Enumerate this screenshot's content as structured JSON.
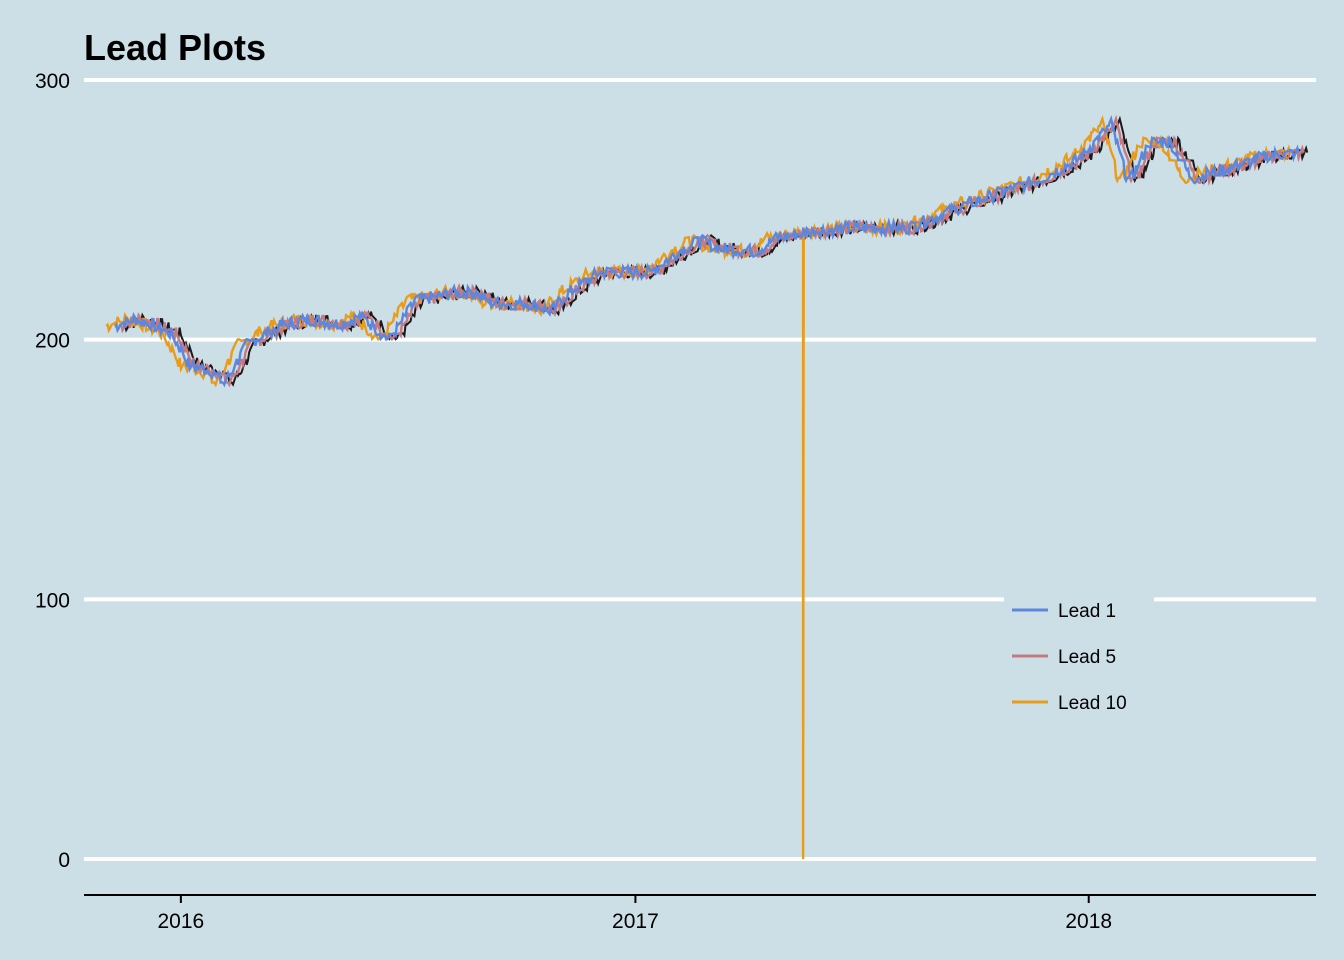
{
  "chart_data": {
    "type": "line",
    "title": "Lead Plots",
    "xlabel": "",
    "ylabel": "",
    "ylim": [
      0,
      300
    ],
    "y_ticks": [
      0,
      100,
      200,
      300
    ],
    "y_tick_labels": [
      "0",
      "100",
      "200",
      "300"
    ],
    "x_range": [
      "2015-10-15",
      "2018-07-03"
    ],
    "x_ticks": [
      "2016-01-01",
      "2017-01-01",
      "2018-01-01"
    ],
    "x_tick_labels": [
      "2016",
      "2017",
      "2018"
    ],
    "grid": "horizontal",
    "background_color": "#cddfe6",
    "legend": {
      "placement": "bottom-right"
    },
    "base_series": {
      "color": "#1a1a1a",
      "points": [
        [
          "2015-11-15",
          205
        ],
        [
          "2015-12-01",
          208
        ],
        [
          "2015-12-15",
          206
        ],
        [
          "2016-01-01",
          202
        ],
        [
          "2016-01-15",
          190
        ],
        [
          "2016-02-01",
          188
        ],
        [
          "2016-02-12",
          183
        ],
        [
          "2016-03-01",
          198
        ],
        [
          "2016-03-15",
          202
        ],
        [
          "2016-04-01",
          206
        ],
        [
          "2016-04-20",
          208
        ],
        [
          "2016-05-15",
          206
        ],
        [
          "2016-06-01",
          209
        ],
        [
          "2016-06-24",
          200
        ],
        [
          "2016-07-15",
          215
        ],
        [
          "2016-08-15",
          218
        ],
        [
          "2016-09-01",
          218
        ],
        [
          "2016-09-15",
          214
        ],
        [
          "2016-10-15",
          214
        ],
        [
          "2016-11-01",
          211
        ],
        [
          "2016-11-15",
          218
        ],
        [
          "2016-12-10",
          226
        ],
        [
          "2017-01-01",
          226
        ],
        [
          "2017-01-20",
          226
        ],
        [
          "2017-02-15",
          235
        ],
        [
          "2017-03-01",
          238
        ],
        [
          "2017-03-20",
          235
        ],
        [
          "2017-04-15",
          234
        ],
        [
          "2017-05-01",
          239
        ],
        [
          "2017-06-01",
          242
        ],
        [
          "2017-07-01",
          243
        ],
        [
          "2017-08-15",
          243
        ],
        [
          "2017-09-01",
          246
        ],
        [
          "2017-10-01",
          252
        ],
        [
          "2017-11-01",
          257
        ],
        [
          "2017-12-01",
          262
        ],
        [
          "2018-01-01",
          270
        ],
        [
          "2018-01-26",
          283
        ],
        [
          "2018-02-09",
          260
        ],
        [
          "2018-02-26",
          276
        ],
        [
          "2018-03-15",
          276
        ],
        [
          "2018-04-01",
          262
        ],
        [
          "2018-04-15",
          264
        ],
        [
          "2018-05-15",
          268
        ],
        [
          "2018-06-01",
          271
        ],
        [
          "2018-06-26",
          272
        ]
      ]
    },
    "series": [
      {
        "name": "Lead 1",
        "color": "#5b87de",
        "lead_days": 7
      },
      {
        "name": "Lead 5",
        "color": "#c47a83",
        "lead_days": 3
      },
      {
        "name": "Lead 10",
        "color": "#e89c1c",
        "lead_days": 14,
        "spike": {
          "date": "2017-05-16",
          "value": 0
        }
      }
    ]
  }
}
